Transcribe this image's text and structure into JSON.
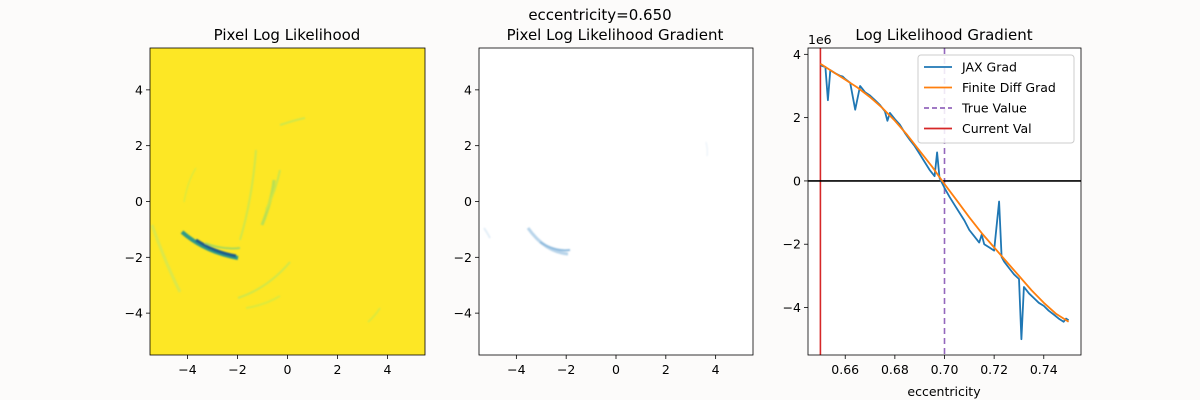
{
  "suptitle": "eccentricity=0.650",
  "chart_data": [
    {
      "type": "heatmap",
      "title": "Pixel Log Likelihood",
      "xlim": [
        -5.5,
        5.5
      ],
      "ylim": [
        -5.5,
        5.5
      ],
      "xticks": [
        -4,
        -2,
        0,
        2,
        4
      ],
      "yticks": [
        -4,
        -2,
        0,
        2,
        4
      ],
      "colormap": "viridis",
      "background_color": "#fde725",
      "features": "faint arcs in yellow-green; darkest (teal/blue) arc near (-2.5, -1.8)"
    },
    {
      "type": "heatmap",
      "title": "Pixel Log Likelihood Gradient",
      "xlim": [
        -5.5,
        5.5
      ],
      "ylim": [
        -5.5,
        5.5
      ],
      "xticks": [
        -4,
        -2,
        0,
        2,
        4
      ],
      "yticks": [
        -4,
        -2,
        0,
        2,
        4
      ],
      "colormap": "blues",
      "background_color": "#ffffff",
      "features": "nearly blank; faint light-blue arc near (-2.5, -1.8)"
    },
    {
      "type": "line",
      "title": "Log Likelihood Gradient",
      "xlabel": "eccentricity",
      "ylabel": "",
      "y_scale_label": "1e6",
      "xlim": [
        0.645,
        0.755
      ],
      "ylim": [
        -5.5,
        4.2
      ],
      "xticks": [
        0.66,
        0.68,
        0.7,
        0.72,
        0.74
      ],
      "xtick_labels": [
        "0.66",
        "0.68",
        "0.70",
        "0.72",
        "0.74"
      ],
      "yticks": [
        -4,
        -2,
        0,
        2,
        4
      ],
      "legend_position": "upper right",
      "series": [
        {
          "name": "JAX Grad",
          "color": "#1f77b4",
          "x": [
            0.65,
            0.652,
            0.653,
            0.654,
            0.656,
            0.658,
            0.659,
            0.66,
            0.662,
            0.664,
            0.666,
            0.667,
            0.668,
            0.67,
            0.672,
            0.674,
            0.676,
            0.677,
            0.678,
            0.68,
            0.682,
            0.684,
            0.686,
            0.688,
            0.69,
            0.692,
            0.694,
            0.696,
            0.697,
            0.698,
            0.7,
            0.702,
            0.704,
            0.706,
            0.708,
            0.71,
            0.712,
            0.714,
            0.715,
            0.716,
            0.718,
            0.72,
            0.722,
            0.723,
            0.724,
            0.726,
            0.728,
            0.73,
            0.731,
            0.732,
            0.733,
            0.734,
            0.736,
            0.738,
            0.74,
            0.742,
            0.744,
            0.746,
            0.748,
            0.749,
            0.75
          ],
          "y": [
            3.65,
            3.6,
            2.55,
            3.5,
            3.4,
            3.32,
            3.3,
            3.22,
            3.1,
            2.25,
            3.0,
            2.9,
            2.8,
            2.7,
            2.55,
            2.4,
            2.2,
            1.9,
            2.15,
            1.95,
            1.78,
            1.52,
            1.3,
            1.1,
            0.85,
            0.6,
            0.35,
            0.15,
            0.9,
            0.1,
            -0.22,
            -0.5,
            -0.75,
            -1.0,
            -1.25,
            -1.55,
            -1.75,
            -1.95,
            -1.7,
            -2.0,
            -2.1,
            -2.2,
            -0.65,
            -2.4,
            -2.55,
            -2.75,
            -2.95,
            -3.1,
            -5.0,
            -3.35,
            -3.45,
            -3.55,
            -3.7,
            -3.85,
            -3.95,
            -4.1,
            -4.22,
            -4.35,
            -4.45,
            -4.35,
            -4.4
          ]
        },
        {
          "name": "Finite Diff Grad",
          "color": "#ff7f0e",
          "x": [
            0.65,
            0.655,
            0.66,
            0.665,
            0.67,
            0.675,
            0.68,
            0.685,
            0.69,
            0.695,
            0.7,
            0.705,
            0.71,
            0.715,
            0.72,
            0.725,
            0.73,
            0.735,
            0.74,
            0.745,
            0.75
          ],
          "y": [
            3.7,
            3.45,
            3.2,
            2.95,
            2.65,
            2.3,
            1.9,
            1.45,
            0.95,
            0.45,
            -0.1,
            -0.62,
            -1.15,
            -1.65,
            -2.1,
            -2.55,
            -3.0,
            -3.45,
            -3.85,
            -4.2,
            -4.45
          ]
        }
      ],
      "reference_lines": [
        {
          "name": "True Value",
          "orientation": "vertical",
          "x": 0.7,
          "color": "#9467bd",
          "style": "dashed"
        },
        {
          "name": "Current Val",
          "orientation": "vertical",
          "x": 0.65,
          "color": "#d62728",
          "style": "solid"
        },
        {
          "name": "",
          "orientation": "horizontal",
          "y": 0,
          "color": "#000000",
          "style": "solid"
        }
      ]
    }
  ]
}
